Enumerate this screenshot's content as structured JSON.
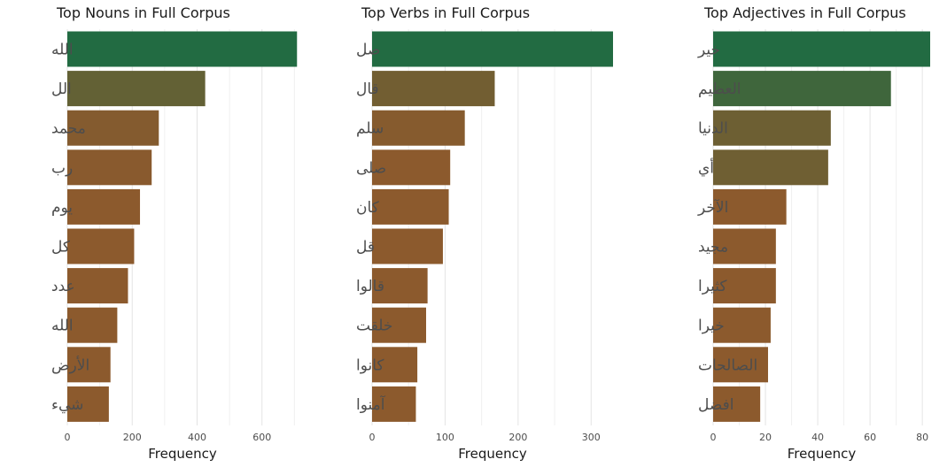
{
  "colors": {
    "green": "#226b42",
    "brown": "#8c5a2d",
    "grid": "#e4e4e4"
  },
  "chart_data": [
    {
      "type": "bar",
      "orientation": "horizontal",
      "title": "Top Nouns in Full Corpus",
      "xlabel": "Frequency",
      "ylabel": "",
      "xlim": [
        0,
        710
      ],
      "xticks": [
        0,
        200,
        400,
        600
      ],
      "grid": true,
      "categories": [
        "الله",
        "الل",
        "محمد",
        "رب",
        "يوم",
        "كل",
        "عدد",
        "الله",
        "الأرض",
        "شيء"
      ],
      "values": [
        708,
        425,
        282,
        260,
        224,
        206,
        187,
        154,
        133,
        128
      ]
    },
    {
      "type": "bar",
      "orientation": "horizontal",
      "title": "Top Verbs in Full Corpus",
      "xlabel": "Frequency",
      "ylabel": "",
      "xlim": [
        0,
        330
      ],
      "xticks": [
        0,
        100,
        200,
        300
      ],
      "grid": true,
      "categories": [
        "صل",
        "قال",
        "سلم",
        "صلى",
        "كان",
        "قل",
        "قالوا",
        "خلقت",
        "كانوا",
        "آمنوا"
      ],
      "values": [
        330,
        168,
        127,
        107,
        105,
        97,
        76,
        74,
        62,
        60
      ]
    },
    {
      "type": "bar",
      "orientation": "horizontal",
      "title": "Top Adjectives in Full Corpus",
      "xlabel": "Frequency",
      "ylabel": "",
      "xlim": [
        0,
        83
      ],
      "xticks": [
        0,
        20,
        40,
        60,
        80
      ],
      "grid": true,
      "categories": [
        "خير",
        "العظيم",
        "الدنيا",
        "أي",
        "الآخر",
        "مجيد",
        "كثيرا",
        "خيرا",
        "الصالحات",
        "افضل"
      ],
      "values": [
        83,
        68,
        45,
        44,
        28,
        24,
        24,
        22,
        21,
        18
      ]
    }
  ]
}
